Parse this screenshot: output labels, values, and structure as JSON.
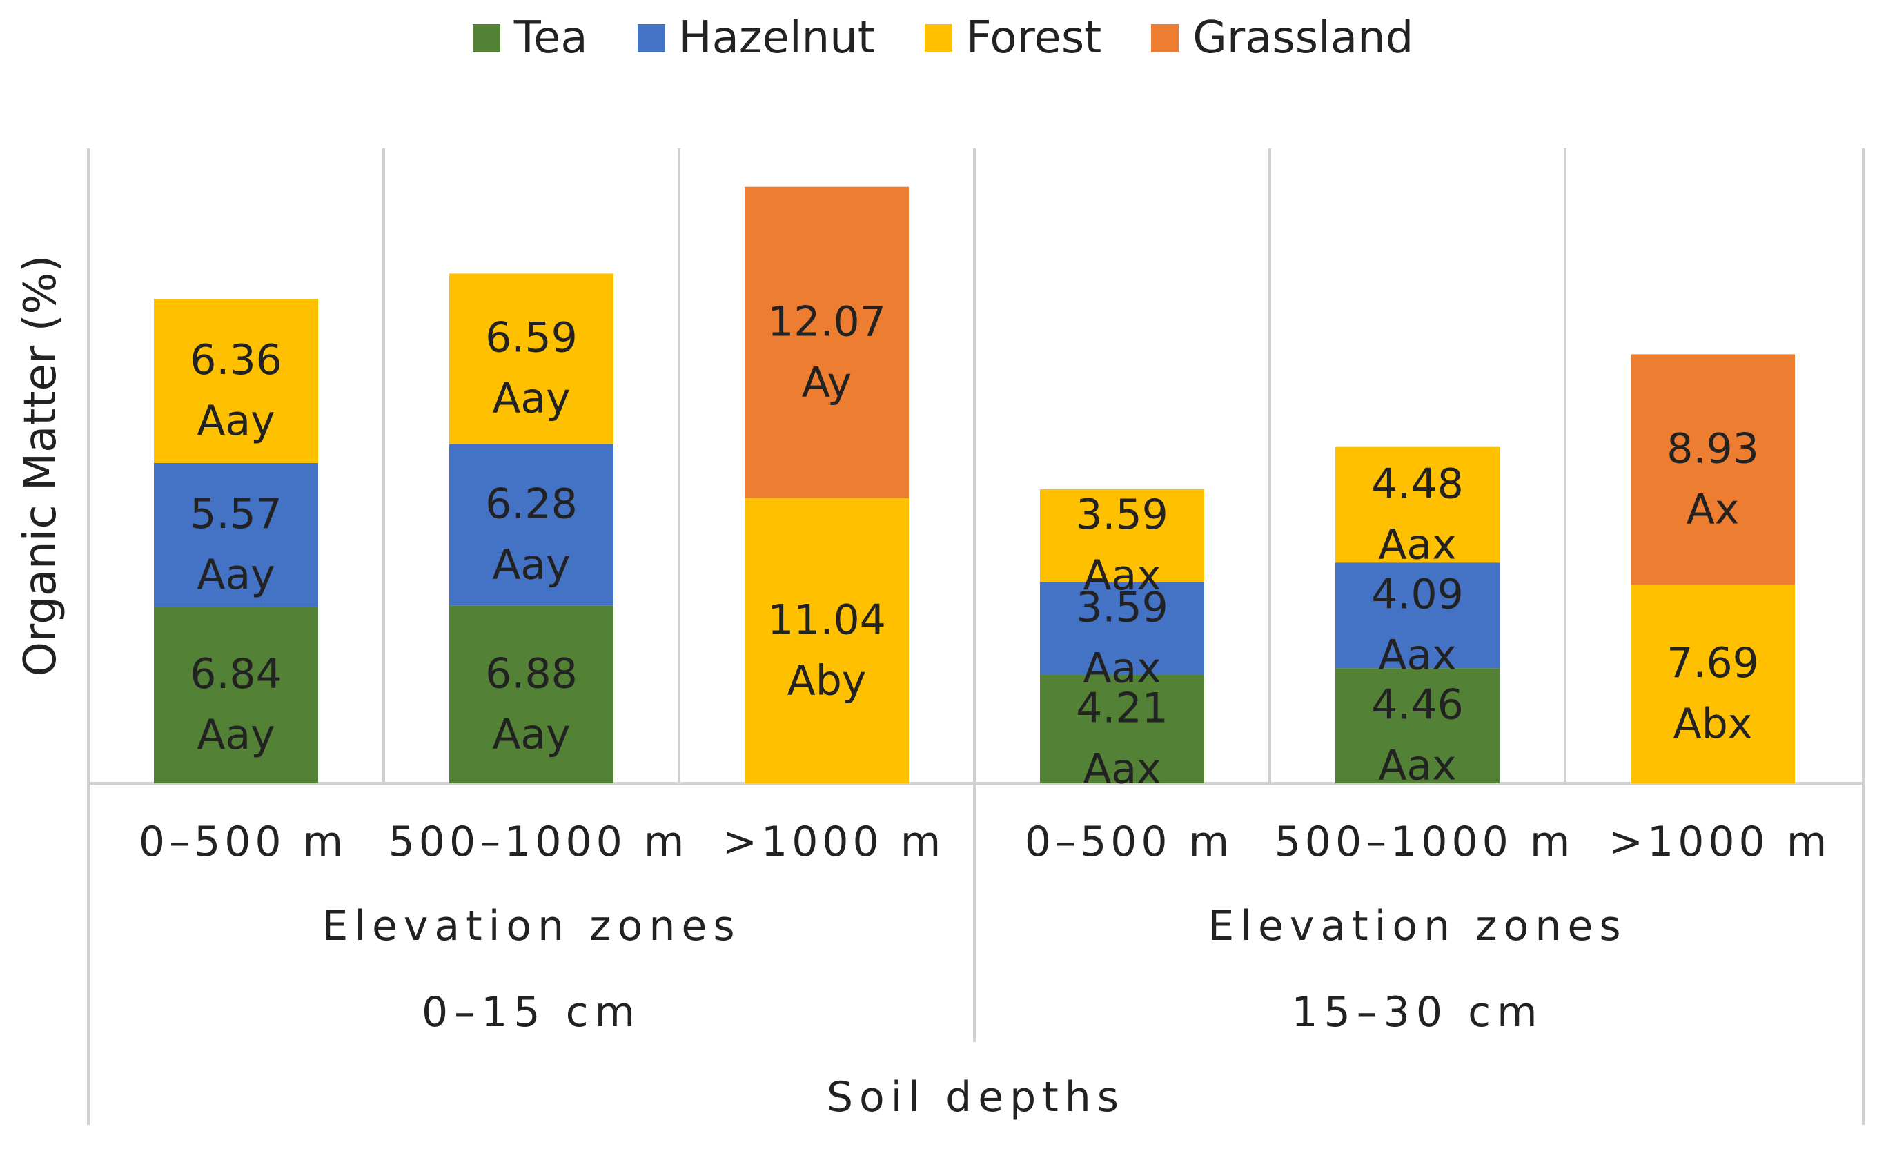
{
  "chart_data": {
    "type": "bar",
    "stacked": true,
    "ylabel": "Organic Matter (%)",
    "legend": [
      {
        "name": "Tea",
        "color": "#538135"
      },
      {
        "name": "Hazelnut",
        "color": "#4472C4"
      },
      {
        "name": "Forest",
        "color": "#FFC000"
      },
      {
        "name": "Grassland",
        "color": "#ED7D31"
      }
    ],
    "legend_position": "top-center",
    "grid": false,
    "ylim": [
      0,
      25
    ],
    "outer_axis_label": "Soil depths",
    "groups": [
      {
        "depth": "0–15 cm",
        "zone_label": "Elevation zones",
        "categories": [
          {
            "label": "0–500 m",
            "stack": [
              {
                "series": "Tea",
                "value": 6.84,
                "letters": "Aay"
              },
              {
                "series": "Hazelnut",
                "value": 5.57,
                "letters": "Aay"
              },
              {
                "series": "Forest",
                "value": 6.36,
                "letters": "Aay"
              }
            ]
          },
          {
            "label": "500–1000 m",
            "stack": [
              {
                "series": "Tea",
                "value": 6.88,
                "letters": "Aay"
              },
              {
                "series": "Hazelnut",
                "value": 6.28,
                "letters": "Aay"
              },
              {
                "series": "Forest",
                "value": 6.59,
                "letters": "Aay"
              }
            ]
          },
          {
            "label": ">1000 m",
            "stack": [
              {
                "series": "Forest",
                "value": 11.04,
                "letters": "Aby"
              },
              {
                "series": "Grassland",
                "value": 12.07,
                "letters": "Ay"
              }
            ]
          }
        ]
      },
      {
        "depth": "15–30 cm",
        "zone_label": "Elevation zones",
        "categories": [
          {
            "label": "0–500 m",
            "stack": [
              {
                "series": "Tea",
                "value": 4.21,
                "letters": "Aax"
              },
              {
                "series": "Hazelnut",
                "value": 3.59,
                "letters": "Aax"
              },
              {
                "series": "Forest",
                "value": 3.59,
                "letters": "Aax"
              }
            ]
          },
          {
            "label": "500–1000 m",
            "stack": [
              {
                "series": "Tea",
                "value": 4.46,
                "letters": "Aax"
              },
              {
                "series": "Hazelnut",
                "value": 4.09,
                "letters": "Aax"
              },
              {
                "series": "Forest",
                "value": 4.48,
                "letters": "Aax"
              }
            ]
          },
          {
            "label": ">1000 m",
            "stack": [
              {
                "series": "Forest",
                "value": 7.69,
                "letters": "Abx"
              },
              {
                "series": "Grassland",
                "value": 8.93,
                "letters": "Ax"
              }
            ]
          }
        ]
      }
    ]
  }
}
